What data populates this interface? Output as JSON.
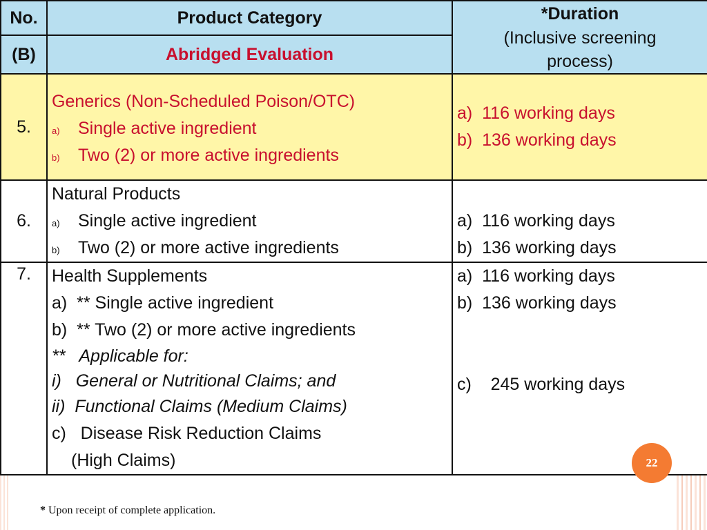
{
  "header": {
    "no": "No.",
    "product_category": "Product Category",
    "b": "(B)",
    "abridged": "Abridged Evaluation",
    "duration_title": "*Duration",
    "duration_sub1": "(Inclusive screening",
    "duration_sub2": "process)"
  },
  "rows": [
    {
      "no": "5.",
      "title": "Generics (Non-Scheduled Poison/OTC)",
      "items": [
        {
          "marker": "a)",
          "text": "Single active ingredient"
        },
        {
          "marker": "b)",
          "text": "Two (2) or more active ingredients"
        }
      ],
      "durations": [
        "a)  116 working days",
        "b)  136 working days"
      ]
    },
    {
      "no": "6.",
      "title": "Natural Products",
      "items": [
        {
          "marker": "a)",
          "text": "Single active ingredient"
        },
        {
          "marker": "b)",
          "text": "Two (2) or more active ingredients"
        }
      ],
      "durations": [
        "a)  116 working days",
        "b)  136 working days"
      ]
    },
    {
      "no": "7.",
      "title": "Health Supplements",
      "lines": [
        "a)  ** Single active ingredient",
        "b)  ** Two (2) or more active ingredients",
        "**   Applicable for:",
        "i)   General or Nutritional Claims; and",
        "ii)  Functional Claims (Medium Claims)",
        "c)   Disease Risk Reduction Claims",
        "(High Claims)"
      ],
      "durations": [
        "a)  116 working days",
        "b)  136 working days",
        "c)    245 working days"
      ]
    }
  ],
  "footnote_star": "*",
  "footnote": "Upon receipt of complete application.",
  "page_number": "22"
}
